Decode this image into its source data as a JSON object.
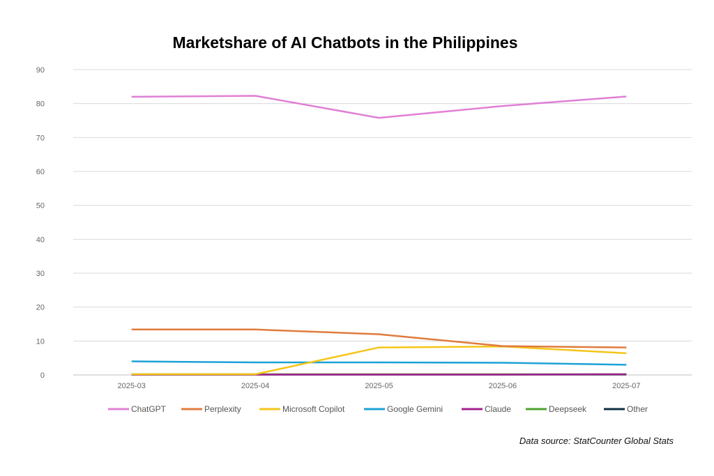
{
  "chart_data": {
    "type": "line",
    "title": "Marketshare of AI Chatbots in the Philippines",
    "xlabel": "",
    "ylabel": "",
    "categories": [
      "2025-03",
      "2025-04",
      "2025-05",
      "2025-06",
      "2025-07"
    ],
    "ylim": [
      0,
      90
    ],
    "yticks": [
      0,
      10,
      20,
      30,
      40,
      50,
      60,
      70,
      80,
      90
    ],
    "grid": true,
    "legend_position": "bottom",
    "series": [
      {
        "name": "ChatGPT",
        "color": "#E07FD6",
        "values": [
          82.0,
          82.3,
          75.8,
          79.3,
          82.1
        ]
      },
      {
        "name": "Perplexity",
        "color": "#E07B3C",
        "values": [
          13.4,
          13.4,
          12.0,
          8.5,
          8.1
        ]
      },
      {
        "name": "Microsoft Copilot",
        "color": "#F5C518",
        "values": [
          0.2,
          0.2,
          8.1,
          8.4,
          6.4
        ]
      },
      {
        "name": "Google Gemini",
        "color": "#1DA1D6",
        "values": [
          4.0,
          3.7,
          3.7,
          3.6,
          3.0
        ]
      },
      {
        "name": "Claude",
        "color": "#A0208F",
        "values": [
          0.1,
          0.1,
          0.1,
          0.1,
          0.2
        ]
      },
      {
        "name": "Deepseek",
        "color": "#4CA32E",
        "values": [
          0.2,
          0.2,
          0.2,
          0.2,
          0.2
        ]
      },
      {
        "name": "Other",
        "color": "#0E2F44",
        "values": [
          0.1,
          0.1,
          0.1,
          0.1,
          0.1
        ]
      }
    ]
  },
  "source": "Data source: StatCounter Global Stats"
}
